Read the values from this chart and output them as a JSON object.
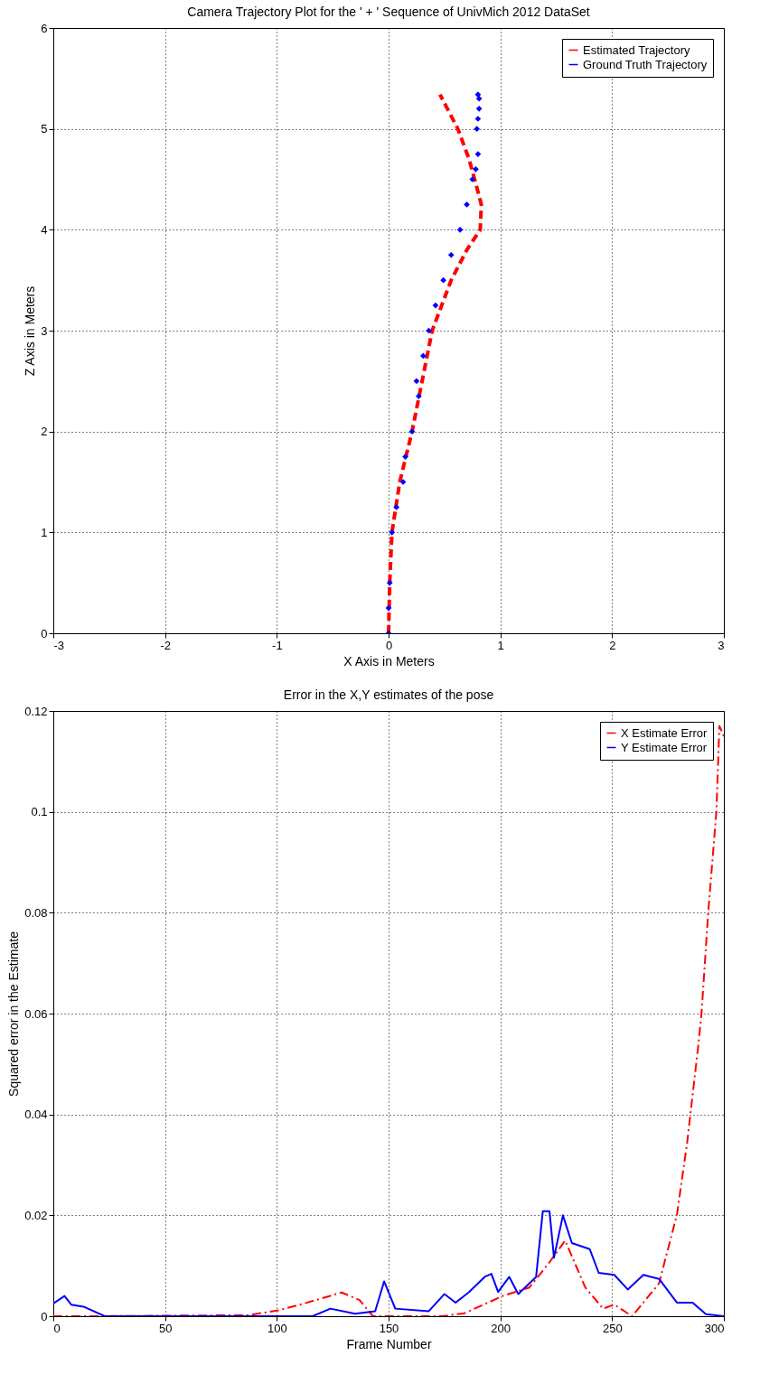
{
  "chart_data": [
    {
      "type": "line",
      "title": "Camera Trajectory Plot for the ' + ' Sequence of UnivMich 2012 DataSet",
      "xlabel": "X Axis in Meters",
      "ylabel": "Z Axis in Meters",
      "xlim": [
        -3,
        3
      ],
      "ylim": [
        0,
        6
      ],
      "xticks": [
        -3,
        -2,
        -1,
        0,
        1,
        2,
        3
      ],
      "yticks": [
        0,
        1,
        2,
        3,
        4,
        5,
        6
      ],
      "grid": true,
      "legend": "top right",
      "series": [
        {
          "name": "Estimated Trajectory",
          "color": "#ff0000",
          "line_style": "dashed",
          "x": [
            0,
            0.01,
            0.03,
            0.1,
            0.21,
            0.3,
            0.39,
            0.56,
            0.7,
            0.82,
            0.83,
            0.77,
            0.72,
            0.62,
            0.46
          ],
          "values": [
            0,
            0.5,
            1,
            1.5,
            2,
            2.5,
            3,
            3.5,
            3.8,
            4,
            4.25,
            4.5,
            4.7,
            5,
            5.34
          ]
        },
        {
          "name": "Ground Truth Trajectory",
          "type": "scatter",
          "marker": "diamond",
          "color": "#0000ff",
          "x": [
            0,
            0,
            0.01,
            0.03,
            0.07,
            0.13,
            0.15,
            0.21,
            0.27,
            0.25,
            0.31,
            0.36,
            0.42,
            0.49,
            0.56,
            0.64,
            0.7,
            0.75,
            0.78,
            0.8,
            0.79,
            0.8,
            0.81,
            0.81,
            0.8
          ],
          "values": [
            0,
            0.25,
            0.5,
            1,
            1.25,
            1.5,
            1.75,
            2,
            2.35,
            2.5,
            2.75,
            3,
            3.25,
            3.5,
            3.75,
            4,
            4.25,
            4.5,
            4.6,
            4.75,
            5,
            5.1,
            5.2,
            5.3,
            5.34
          ]
        }
      ]
    },
    {
      "type": "line",
      "title": "Error in the X,Y estimates of the pose",
      "xlabel": "Frame Number",
      "ylabel": "Squared error in the Estimate",
      "xlim": [
        0,
        300
      ],
      "ylim": [
        0,
        0.12
      ],
      "xticks": [
        0,
        50,
        100,
        150,
        200,
        250,
        300
      ],
      "yticks": [
        0,
        0.02,
        0.04,
        0.06,
        0.08,
        0.1,
        0.12
      ],
      "grid": true,
      "legend": "top right",
      "series": [
        {
          "name": "X Estimate Error",
          "color": "#ff0000",
          "line_style": "dashdot",
          "x": [
            0,
            17,
            87,
            100,
            112,
            129,
            137,
            143,
            174,
            184,
            201,
            213,
            222,
            229,
            238,
            246,
            251,
            259,
            271,
            279,
            283.6,
            288.6,
            290,
            293,
            296.7,
            298,
            300
          ],
          "values": [
            0,
            0,
            0.0002,
            0.0011,
            0.0025,
            0.0047,
            0.0032,
            0,
            0,
            0.0006,
            0.004,
            0.0057,
            0.0107,
            0.015,
            0.0057,
            0.0015,
            0.0023,
            0,
            0.0065,
            0.0201,
            0.0345,
            0.0538,
            0.06,
            0.08,
            0.1003,
            0.117,
            0.115
          ]
        },
        {
          "name": "Y Estimate Error",
          "color": "#0000ff",
          "line_style": "solid",
          "x": [
            0,
            5,
            8,
            13.5,
            23,
            116,
            124,
            135,
            144,
            148,
            153,
            168,
            175,
            180,
            186,
            193,
            196,
            199,
            204,
            208,
            216,
            219,
            222,
            224,
            228,
            232,
            240,
            244,
            251,
            257,
            264,
            271,
            279,
            286,
            292,
            300
          ],
          "values": [
            0.0025,
            0.004,
            0.0023,
            0.0019,
            0,
            0,
            0.0015,
            0.0005,
            0.001,
            0.0069,
            0.0015,
            0.001,
            0.0044,
            0.0027,
            0.0048,
            0.0078,
            0.0084,
            0.0048,
            0.0078,
            0.0044,
            0.0078,
            0.0208,
            0.0208,
            0.0116,
            0.02,
            0.0145,
            0.0133,
            0.0086,
            0.0082,
            0.0053,
            0.0082,
            0.0074,
            0.0027,
            0.0027,
            0.0004,
            0
          ]
        }
      ]
    }
  ]
}
